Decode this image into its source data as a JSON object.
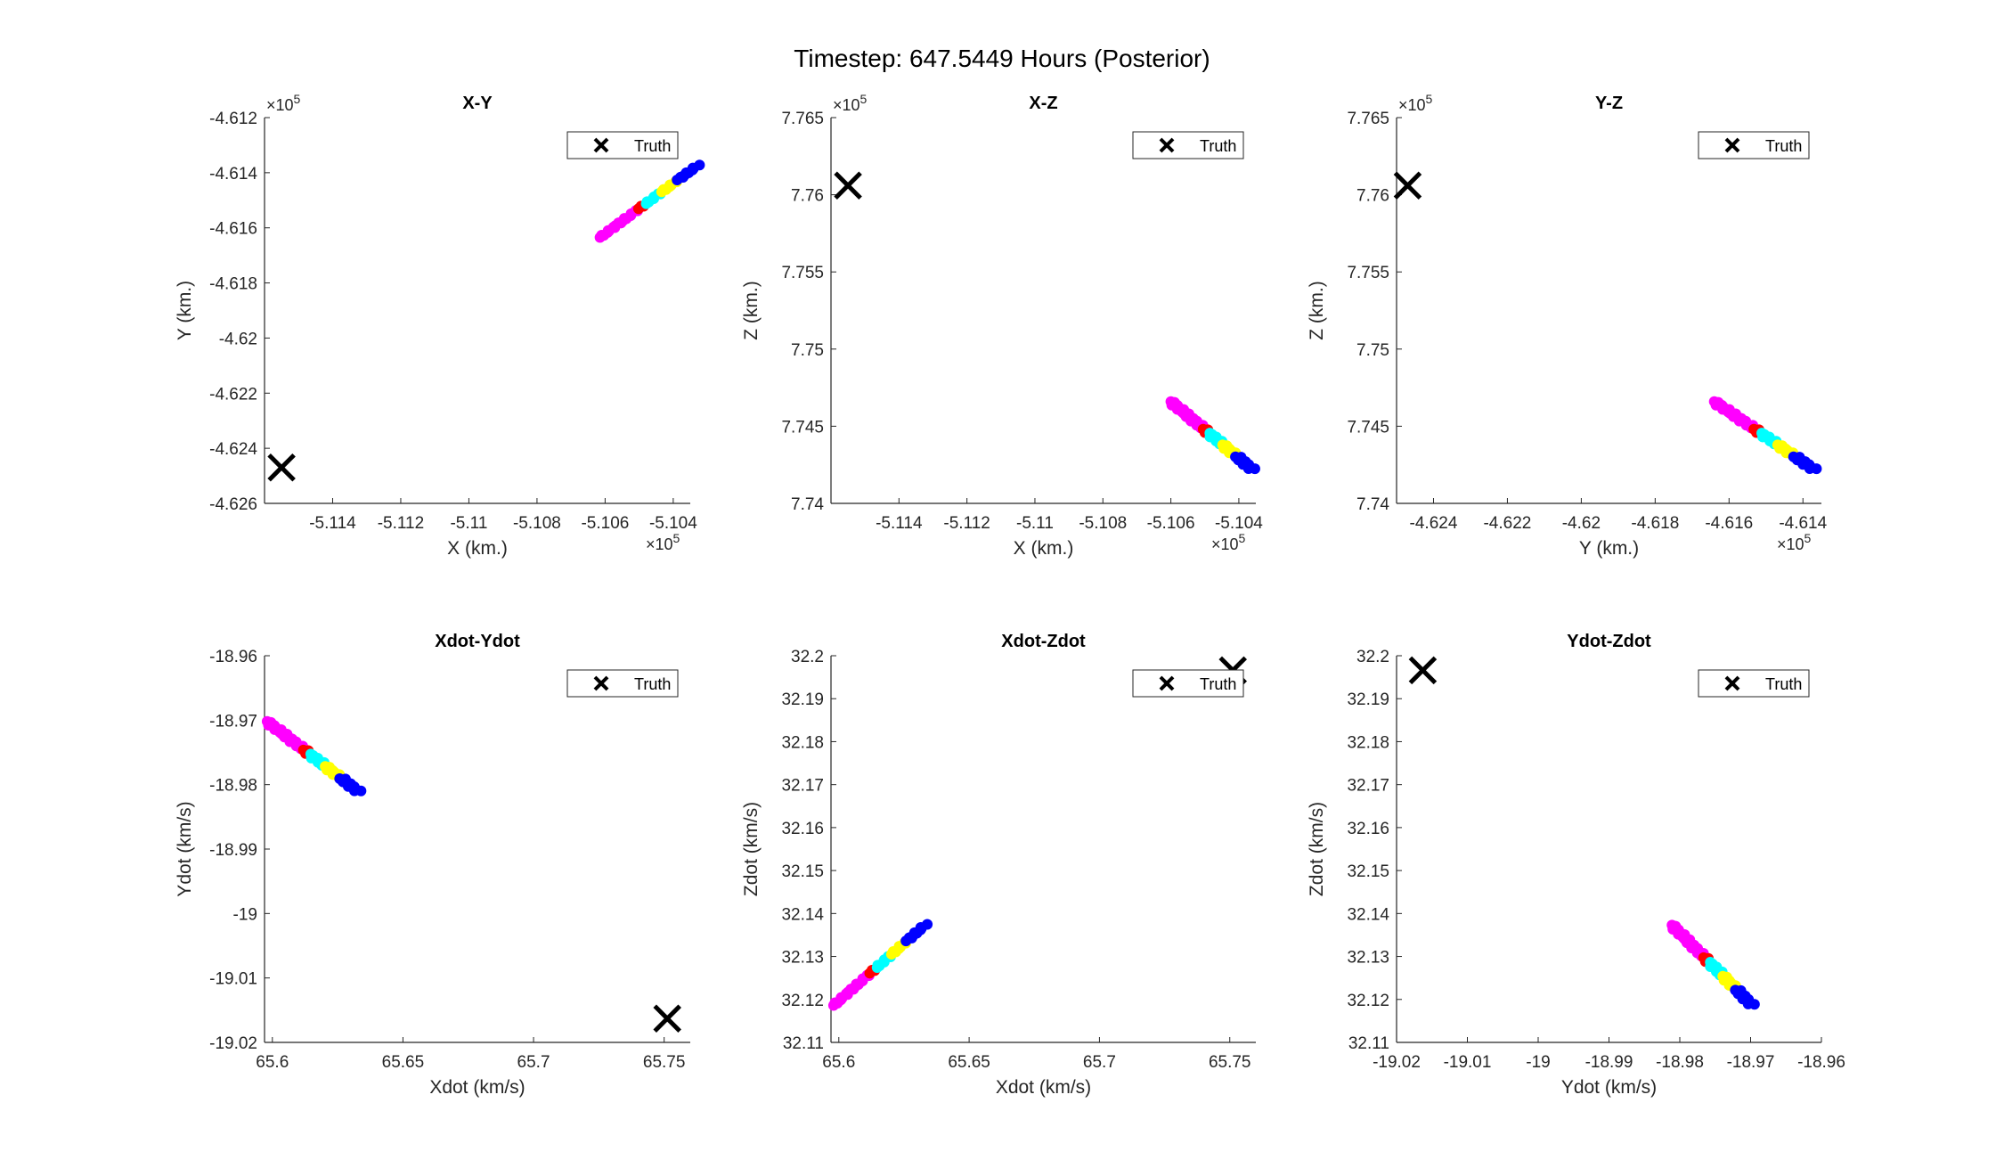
{
  "figure": {
    "title": "Timestep: 647.5449 Hours (Posterior)"
  },
  "colors": {
    "truth": "#000000",
    "blue": "#0000ff",
    "yellow": "#ffff00",
    "cyan": "#00ffff",
    "magenta": "#ff00ff",
    "red": "#ff0000",
    "axis": "#262626"
  },
  "chart_data": [
    {
      "type": "scatter",
      "title": "X-Y",
      "xlabel": "X (km.)",
      "ylabel": "Y (km.)",
      "xlim": [
        -511.6,
        -510.35
      ],
      "ylim": [
        -462.6,
        -461.2
      ],
      "xticks": [
        -511.4,
        -511.2,
        -511.0,
        -510.8,
        -510.6,
        -510.4
      ],
      "xticklabels": [
        "-5.114",
        "-5.112",
        "-5.11",
        "-5.108",
        "-5.106",
        "-5.104"
      ],
      "yticks": [
        -462.6,
        -462.4,
        -462.2,
        -462.0,
        -461.8,
        -461.6,
        -461.4,
        -461.2
      ],
      "yticklabels": [
        "-4.626",
        "-4.624",
        "-4.622",
        "-4.62",
        "-4.618",
        "-4.616",
        "-4.614",
        "-4.612"
      ],
      "xexponent": "5",
      "yexponent": "5",
      "legend": {
        "label": "Truth",
        "location": "top-right"
      },
      "truth": [
        -511.55,
        -462.47
      ],
      "cloud": {
        "start": [
          -510.615,
          -461.635
        ],
        "end": [
          -510.33,
          -461.375
        ]
      }
    },
    {
      "type": "scatter",
      "title": "X-Z",
      "xlabel": "X (km.)",
      "ylabel": "Z (km.)",
      "xlim": [
        -511.6,
        -510.35
      ],
      "ylim": [
        774.0,
        776.5
      ],
      "xticks": [
        -511.4,
        -511.2,
        -511.0,
        -510.8,
        -510.6,
        -510.4
      ],
      "xticklabels": [
        "-5.114",
        "-5.112",
        "-5.11",
        "-5.108",
        "-5.106",
        "-5.104"
      ],
      "yticks": [
        774.0,
        774.5,
        775.0,
        775.5,
        776.0,
        776.5
      ],
      "yticklabels": [
        "7.74",
        "7.745",
        "7.75",
        "7.755",
        "7.76",
        "7.765"
      ],
      "xexponent": "5",
      "yexponent": "5",
      "legend": {
        "label": "Truth",
        "location": "top-right"
      },
      "truth": [
        -511.55,
        776.06
      ],
      "cloud": {
        "start": [
          -510.6,
          774.66
        ],
        "end": [
          -510.36,
          774.22
        ]
      }
    },
    {
      "type": "scatter",
      "title": "Y-Z",
      "xlabel": "Y (km.)",
      "ylabel": "Z (km.)",
      "xlim": [
        -462.5,
        -461.35
      ],
      "ylim": [
        774.0,
        776.5
      ],
      "xticks": [
        -462.4,
        -462.2,
        -462.0,
        -461.8,
        -461.6,
        -461.4
      ],
      "xticklabels": [
        "-4.624",
        "-4.622",
        "-4.62",
        "-4.618",
        "-4.616",
        "-4.614"
      ],
      "yticks": [
        774.0,
        774.5,
        775.0,
        775.5,
        776.0,
        776.5
      ],
      "yticklabels": [
        "7.74",
        "7.745",
        "7.75",
        "7.755",
        "7.76",
        "7.765"
      ],
      "xexponent": "5",
      "yexponent": "5",
      "legend": {
        "label": "Truth",
        "location": "top-right"
      },
      "truth": [
        -462.47,
        776.06
      ],
      "cloud": {
        "start": [
          -461.64,
          774.66
        ],
        "end": [
          -461.37,
          774.22
        ]
      }
    },
    {
      "type": "scatter",
      "title": "Xdot-Ydot",
      "xlabel": "Xdot (km/s)",
      "ylabel": "Ydot (km/s)",
      "xlim": [
        65.597,
        65.76
      ],
      "ylim": [
        -19.02,
        -18.96
      ],
      "xticks": [
        65.6,
        65.65,
        65.7,
        65.75
      ],
      "xticklabels": [
        "65.6",
        "65.65",
        "65.7",
        "65.75"
      ],
      "yticks": [
        -19.02,
        -19.01,
        -19.0,
        -18.99,
        -18.98,
        -18.97,
        -18.96
      ],
      "yticklabels": [
        "-19.02",
        "-19.01",
        "-19",
        "-18.99",
        "-18.98",
        "-18.97",
        "-18.96"
      ],
      "legend": {
        "label": "Truth",
        "location": "top-right"
      },
      "truth": [
        65.7512,
        -19.0163
      ],
      "cloud": {
        "start": [
          65.598,
          -18.9702
        ],
        "end": [
          65.633,
          -18.9811
        ]
      }
    },
    {
      "type": "scatter",
      "title": "Xdot-Zdot",
      "xlabel": "Xdot (km/s)",
      "ylabel": "Zdot (km/s)",
      "xlim": [
        65.597,
        65.76
      ],
      "ylim": [
        32.11,
        32.2
      ],
      "xticks": [
        65.6,
        65.65,
        65.7,
        65.75
      ],
      "xticklabels": [
        "65.6",
        "65.65",
        "65.7",
        "65.75"
      ],
      "yticks": [
        32.11,
        32.12,
        32.13,
        32.14,
        32.15,
        32.16,
        32.17,
        32.18,
        32.19,
        32.2
      ],
      "yticklabels": [
        "32.11",
        "32.12",
        "32.13",
        "32.14",
        "32.15",
        "32.16",
        "32.17",
        "32.18",
        "32.19",
        "32.2"
      ],
      "legend": {
        "label": "Truth",
        "location": "top-right"
      },
      "truth": [
        65.7512,
        32.1966
      ],
      "cloud": {
        "start": [
          65.598,
          32.1186
        ],
        "end": [
          65.633,
          32.1373
        ]
      }
    },
    {
      "type": "scatter",
      "title": "Ydot-Zdot",
      "xlabel": "Ydot (km/s)",
      "ylabel": "Zdot (km/s)",
      "xlim": [
        -19.02,
        -18.96
      ],
      "ylim": [
        32.11,
        32.2
      ],
      "xticks": [
        -19.02,
        -19.01,
        -19.0,
        -18.99,
        -18.98,
        -18.97,
        -18.96
      ],
      "xticklabels": [
        "-19.02",
        "-19.01",
        "-19",
        "-18.99",
        "-18.98",
        "-18.97",
        "-18.96"
      ],
      "yticks": [
        32.11,
        32.12,
        32.13,
        32.14,
        32.15,
        32.16,
        32.17,
        32.18,
        32.19,
        32.2
      ],
      "yticklabels": [
        "32.11",
        "32.12",
        "32.13",
        "32.14",
        "32.15",
        "32.16",
        "32.17",
        "32.18",
        "32.19",
        "32.2"
      ],
      "legend": {
        "label": "Truth",
        "location": "top-right"
      },
      "truth": [
        -19.0163,
        32.1966
      ],
      "cloud": {
        "start": [
          -18.9811,
          32.1373
        ],
        "end": [
          -18.9698,
          32.1187
        ]
      }
    }
  ]
}
